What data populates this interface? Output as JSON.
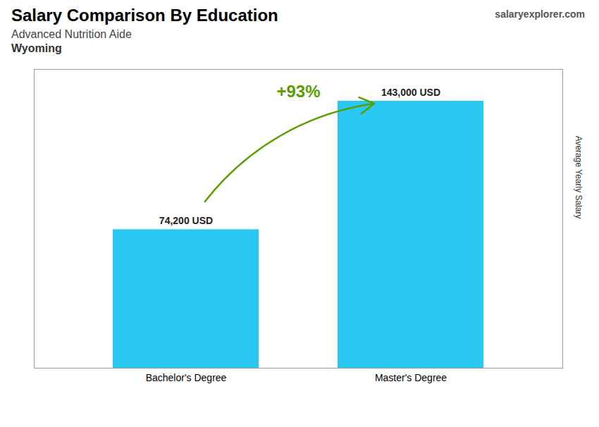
{
  "chart_data": {
    "type": "bar",
    "title": "Salary Comparison By Education",
    "subtitle": "Advanced Nutrition Aide",
    "annotations": [
      "Wyoming",
      "+93%",
      "salaryexplorer.com"
    ],
    "ylabel": "Average Yearly Salary",
    "categories": [
      "Bachelor's Degree",
      "Master's Degree"
    ],
    "values": [
      74200,
      143000
    ],
    "value_labels": [
      "74,200 USD",
      "143,000 USD"
    ],
    "data_labels": true,
    "color": "#29C8F0",
    "ylim": [
      0,
      160000
    ],
    "tick_labels": "x",
    "grid": false
  }
}
